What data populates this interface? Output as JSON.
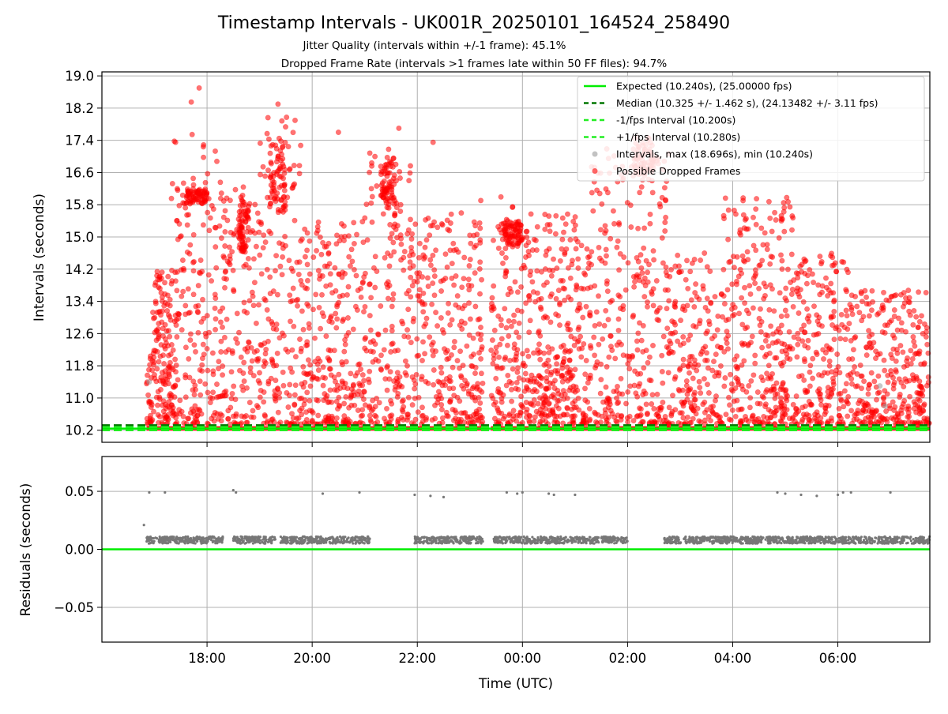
{
  "chart_data": {
    "type": "scatter",
    "title": "Timestamp Intervals - UK001R_20250101_164524_258490",
    "subtitle_lines": [
      "Jitter Quality (intervals within +/-1 frame): 45.1%",
      "Dropped Frame Rate (intervals >1 frames late within 50 FF files): 94.7%"
    ],
    "xlabel": "Time (UTC)",
    "x_ticks": [
      {
        "label": "18:00",
        "hours": 18
      },
      {
        "label": "20:00",
        "hours": 20
      },
      {
        "label": "22:00",
        "hours": 22
      },
      {
        "label": "00:00",
        "hours": 24
      },
      {
        "label": "02:00",
        "hours": 26
      },
      {
        "label": "04:00",
        "hours": 28
      },
      {
        "label": "06:00",
        "hours": 30
      }
    ],
    "xlim_hours": [
      16.0,
      31.75
    ],
    "panels": [
      {
        "id": "intervals",
        "ylabel": "Intervals (seconds)",
        "ylim": [
          9.9,
          19.1
        ],
        "y_ticks": [
          10.2,
          11.0,
          11.8,
          12.6,
          13.4,
          14.2,
          15.0,
          15.8,
          16.6,
          17.4,
          18.2,
          19.0
        ],
        "y_tick_labels": [
          "10.2",
          "11.0",
          "11.8",
          "12.6",
          "13.4",
          "14.2",
          "15.0",
          "15.8",
          "16.6",
          "17.4",
          "18.2",
          "19.0"
        ],
        "grid": true,
        "legend_position": "upper-right",
        "lines": [
          {
            "name": "Expected (10.240s), (25.00000 fps)",
            "y": 10.24,
            "color": "#00ee00",
            "style": "solid"
          },
          {
            "name": "Median (10.325 +/- 1.462 s), (24.13482 +/- 3.11 fps)",
            "y": 10.325,
            "color": "#007700",
            "style": "dashed"
          },
          {
            "name": "-1/fps Interval (10.200s)",
            "y": 10.2,
            "color": "#22ee22",
            "style": "dashed"
          },
          {
            "name": "+1/fps Interval (10.280s)",
            "y": 10.28,
            "color": "#22ee22",
            "style": "dashed"
          }
        ],
        "scatter_series": [
          {
            "name": "Intervals, max (18.696s), min (10.240s)",
            "color": "#999999"
          },
          {
            "name": "Possible Dropped Frames",
            "color": "#ff0000"
          }
        ],
        "active_periods_hours": [
          [
            16.85,
            22.02
          ],
          [
            22.0,
            23.25
          ],
          [
            23.4,
            28.95
          ],
          [
            28.9,
            31.75
          ]
        ],
        "dense_bands": [
          {
            "x": [
              17.0,
              17.4
            ],
            "y": [
              10.5,
              14.2
            ]
          },
          {
            "x": [
              17.6,
              18.0
            ],
            "y": [
              15.8,
              16.2
            ]
          },
          {
            "x": [
              18.6,
              18.8
            ],
            "y": [
              14.6,
              16.0
            ]
          },
          {
            "x": [
              19.2,
              19.5
            ],
            "y": [
              15.6,
              17.4
            ]
          },
          {
            "x": [
              21.3,
              21.6
            ],
            "y": [
              15.8,
              17.0
            ]
          },
          {
            "x": [
              24.0,
              25.0
            ],
            "y": [
              10.5,
              12.2
            ]
          },
          {
            "x": [
              26.1,
              26.5
            ],
            "y": [
              16.5,
              17.5
            ]
          },
          {
            "x": [
              23.6,
              24.0
            ],
            "y": [
              14.8,
              15.4
            ]
          }
        ]
      },
      {
        "id": "residuals",
        "ylabel": "Residuals (seconds)",
        "ylim": [
          -0.08,
          0.08
        ],
        "y_ticks": [
          -0.05,
          0.0,
          0.05
        ],
        "y_tick_labels": [
          "−0.05",
          "0.00",
          "0.05"
        ],
        "grid": true,
        "zero_line_color": "#00ee00",
        "point_color": "#777777",
        "main_band": [
          0.005,
          0.011
        ],
        "outliers": [
          {
            "x": 16.8,
            "y": 0.021
          },
          {
            "x": 16.9,
            "y": 0.049
          },
          {
            "x": 17.2,
            "y": 0.049
          },
          {
            "x": 18.5,
            "y": 0.051
          },
          {
            "x": 18.55,
            "y": 0.049
          },
          {
            "x": 20.2,
            "y": 0.048
          },
          {
            "x": 20.9,
            "y": 0.049
          },
          {
            "x": 21.95,
            "y": 0.047
          },
          {
            "x": 22.25,
            "y": 0.046
          },
          {
            "x": 22.5,
            "y": 0.045
          },
          {
            "x": 23.7,
            "y": 0.049
          },
          {
            "x": 23.9,
            "y": 0.048
          },
          {
            "x": 24.0,
            "y": 0.049
          },
          {
            "x": 24.5,
            "y": 0.048
          },
          {
            "x": 24.6,
            "y": 0.047
          },
          {
            "x": 25.0,
            "y": 0.047
          },
          {
            "x": 28.85,
            "y": 0.049
          },
          {
            "x": 29.0,
            "y": 0.048
          },
          {
            "x": 29.3,
            "y": 0.047
          },
          {
            "x": 29.6,
            "y": 0.046
          },
          {
            "x": 30.0,
            "y": 0.047
          },
          {
            "x": 30.1,
            "y": 0.049
          },
          {
            "x": 30.25,
            "y": 0.049
          },
          {
            "x": 31.0,
            "y": 0.049
          }
        ]
      }
    ]
  }
}
